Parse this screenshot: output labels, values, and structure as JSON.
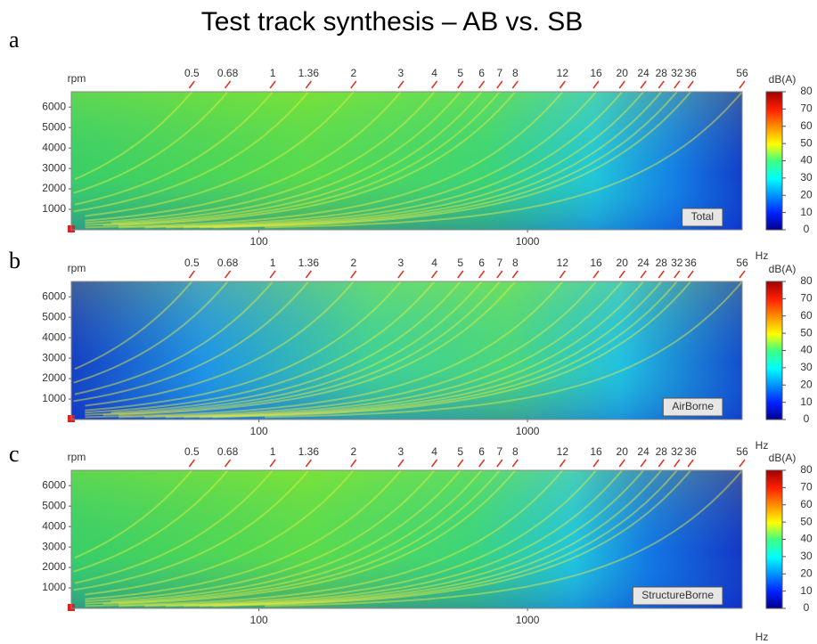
{
  "title": "Test track synthesis – AB vs. SB",
  "chart_data": [
    {
      "type": "heatmap",
      "panel": "a",
      "label": "Total",
      "xlabel": "Hz",
      "ylabel": "rpm",
      "xscale": "log",
      "xlim": [
        20,
        6300
      ],
      "xticks": [
        100,
        1000
      ],
      "ylim": [
        0,
        6750
      ],
      "yticks": [
        1000,
        2000,
        3000,
        4000,
        5000,
        6000
      ],
      "orders": [
        0.5,
        0.68,
        1,
        1.36,
        2,
        3,
        4,
        5,
        6,
        7,
        8,
        12,
        16,
        20,
        24,
        28,
        32,
        36,
        56
      ],
      "colorbar": {
        "label": "dB(A)",
        "lim": [
          0,
          80
        ],
        "ticks": [
          0,
          10,
          20,
          30,
          40,
          50,
          60,
          70,
          80
        ]
      }
    },
    {
      "type": "heatmap",
      "panel": "b",
      "label": "AirBorne",
      "xlabel": "Hz",
      "ylabel": "rpm",
      "xscale": "log",
      "xlim": [
        20,
        6300
      ],
      "xticks": [
        100,
        1000
      ],
      "ylim": [
        0,
        6750
      ],
      "yticks": [
        1000,
        2000,
        3000,
        4000,
        5000,
        6000
      ],
      "orders": [
        0.5,
        0.68,
        1,
        1.36,
        2,
        3,
        4,
        5,
        6,
        7,
        8,
        12,
        16,
        20,
        24,
        28,
        32,
        36,
        56
      ],
      "colorbar": {
        "label": "dB(A)",
        "lim": [
          0,
          80
        ],
        "ticks": [
          0,
          10,
          20,
          30,
          40,
          50,
          60,
          70,
          80
        ]
      }
    },
    {
      "type": "heatmap",
      "panel": "c",
      "label": "StructureBorne",
      "xlabel": "Hz",
      "ylabel": "rpm",
      "xscale": "log",
      "xlim": [
        20,
        6300
      ],
      "xticks": [
        100,
        1000
      ],
      "ylim": [
        0,
        6750
      ],
      "yticks": [
        1000,
        2000,
        3000,
        4000,
        5000,
        6000
      ],
      "orders": [
        0.5,
        0.68,
        1,
        1.36,
        2,
        3,
        4,
        5,
        6,
        7,
        8,
        12,
        16,
        20,
        24,
        28,
        32,
        36,
        56
      ],
      "colorbar": {
        "label": "dB(A)",
        "lim": [
          0,
          80
        ],
        "ticks": [
          0,
          10,
          20,
          30,
          40,
          50,
          60,
          70,
          80
        ]
      }
    }
  ]
}
